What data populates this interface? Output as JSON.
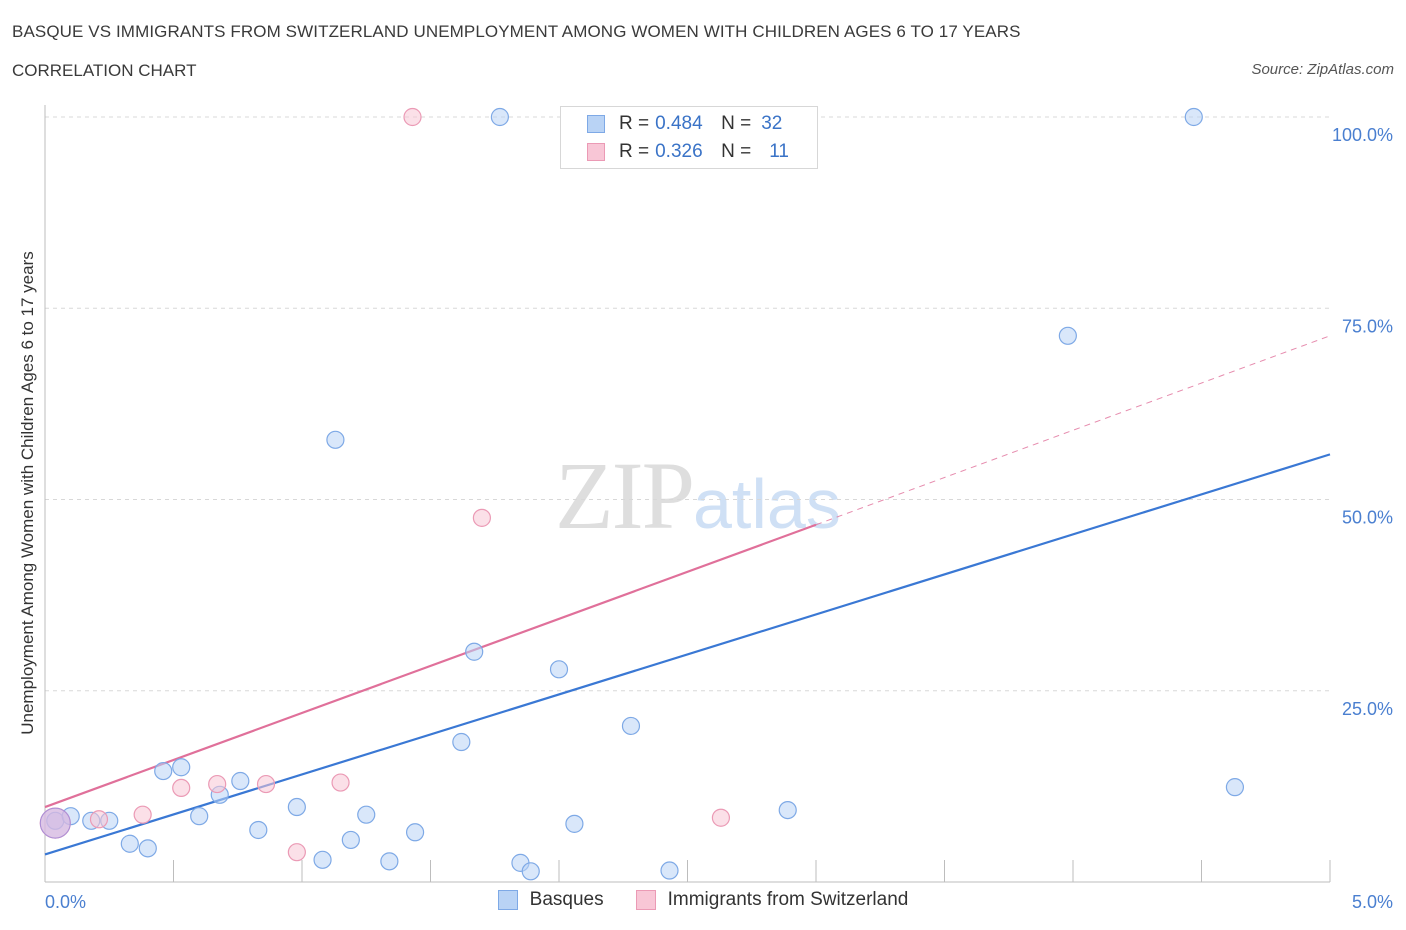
{
  "title": "BASQUE VS IMMIGRANTS FROM SWITZERLAND UNEMPLOYMENT AMONG WOMEN WITH CHILDREN AGES 6 TO 17 YEARS",
  "subtitle": "CORRELATION CHART",
  "source": "Source: ZipAtlas.com",
  "watermark": {
    "zip": "ZIP",
    "atlas": "atlas"
  },
  "colors": {
    "basques": "#3a78d4",
    "basques_fill": "#b9d3f5",
    "swiss": "#e0709a",
    "swiss_fill": "#f8c6d6",
    "tick": "#4a7fd0"
  },
  "legend": {
    "rows": [
      {
        "r_label": "R =",
        "r_value": "0.484",
        "n_label": "N =",
        "n_value": "32"
      },
      {
        "r_label": "R =",
        "r_value": "0.326",
        "n_label": "N =",
        "n_value": "11"
      }
    ]
  },
  "chart_data": {
    "type": "scatter",
    "title": "BASQUE VS IMMIGRANTS FROM SWITZERLAND UNEMPLOYMENT AMONG WOMEN WITH CHILDREN AGES 6 TO 17 YEARS",
    "xlabel": "",
    "ylabel": "Unemployment Among Women with Children Ages 6 to 17 years",
    "xlim": [
      0,
      5
    ],
    "ylim": [
      0,
      100
    ],
    "x_tick_labels": [
      "0.0%",
      "5.0%"
    ],
    "y_tick_labels": [
      "25.0%",
      "50.0%",
      "75.0%",
      "100.0%"
    ],
    "y_ticks": [
      25,
      50,
      75,
      100
    ],
    "grid": "horizontal dashed",
    "legend_position": "top-center",
    "series": [
      {
        "name": "Basques",
        "r": 0.484,
        "n": 32,
        "points": [
          [
            0.04,
            8.0
          ],
          [
            0.1,
            8.6
          ],
          [
            0.18,
            8.0
          ],
          [
            0.25,
            8.0
          ],
          [
            0.33,
            5.0
          ],
          [
            0.4,
            4.4
          ],
          [
            0.46,
            14.5
          ],
          [
            0.53,
            15.0
          ],
          [
            0.6,
            8.6
          ],
          [
            0.68,
            11.4
          ],
          [
            0.76,
            13.2
          ],
          [
            0.83,
            6.8
          ],
          [
            0.98,
            9.8
          ],
          [
            1.08,
            2.9
          ],
          [
            1.13,
            57.8
          ],
          [
            1.19,
            5.5
          ],
          [
            1.25,
            8.8
          ],
          [
            1.34,
            2.7
          ],
          [
            1.44,
            6.5
          ],
          [
            1.62,
            18.3
          ],
          [
            1.67,
            30.1
          ],
          [
            1.77,
            100.0
          ],
          [
            1.85,
            2.5
          ],
          [
            1.89,
            1.4
          ],
          [
            2.0,
            27.8
          ],
          [
            2.06,
            7.6
          ],
          [
            2.28,
            20.4
          ],
          [
            2.43,
            1.5
          ],
          [
            2.89,
            9.4
          ],
          [
            3.98,
            71.4
          ],
          [
            4.47,
            100.0
          ],
          [
            4.63,
            12.4
          ]
        ],
        "trend": {
          "x": [
            0.0,
            5.0
          ],
          "y": [
            3.6,
            55.9
          ]
        }
      },
      {
        "name": "Immigrants from Switzerland",
        "r": 0.326,
        "n": 11,
        "points": [
          [
            0.04,
            7.7
          ],
          [
            0.21,
            8.2
          ],
          [
            0.38,
            8.8
          ],
          [
            0.53,
            12.3
          ],
          [
            0.67,
            12.8
          ],
          [
            0.86,
            12.8
          ],
          [
            0.98,
            3.9
          ],
          [
            1.15,
            13.0
          ],
          [
            1.43,
            100.0
          ],
          [
            1.7,
            47.6
          ],
          [
            2.63,
            8.4
          ]
        ],
        "trend": {
          "x": [
            0.0,
            3.0
          ],
          "y": [
            9.8,
            46.7
          ],
          "dashed_to": {
            "x": 5.0,
            "y": 71.4
          }
        }
      }
    ]
  },
  "bottom_legend": [
    {
      "label": "Basques"
    },
    {
      "label": "Immigrants from Switzerland"
    }
  ]
}
